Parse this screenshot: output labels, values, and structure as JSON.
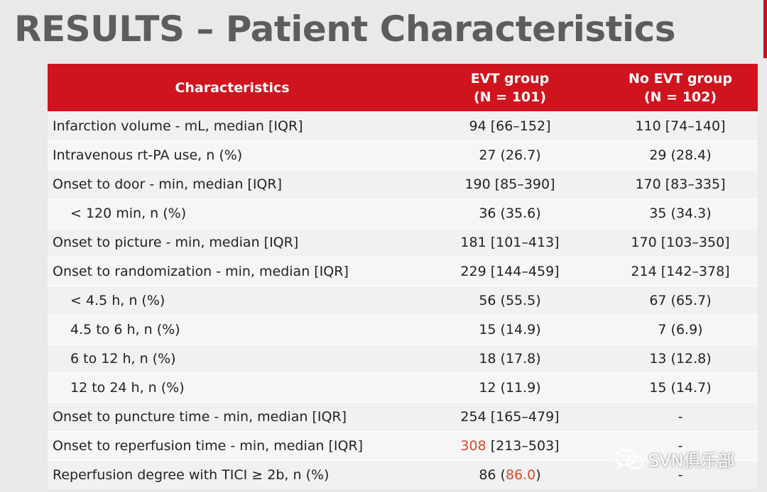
{
  "title": "RESULTS – Patient Characteristics",
  "colors": {
    "header_bg": "#d0141e",
    "title": "#5d5d5d",
    "highlight": "#d94a2c"
  },
  "table": {
    "headers": {
      "characteristics": "Characteristics",
      "evt_line1": "EVT group",
      "evt_line2": "(N = 101)",
      "noevt_line1": "No EVT group",
      "noevt_line2": "(N = 102)"
    },
    "rows": [
      {
        "label": "Infarction volume - mL, median [IQR]",
        "evt": "94 [66–152]",
        "noevt": "110 [74–140]"
      },
      {
        "label": "Intravenous rt-PA use, n (%)",
        "evt": "27 (26.7)",
        "noevt": "29 (28.4)"
      },
      {
        "label": "Onset to door - min, median [IQR]",
        "evt": "190 [85–390]",
        "noevt": "170 [83–335]"
      },
      {
        "label": "< 120 min, n (%)",
        "evt": "36 (35.6)",
        "noevt": "35 (34.3)"
      },
      {
        "label": "Onset to picture - min, median [IQR]",
        "evt": "181 [101–413]",
        "noevt": "170 [103–350]"
      },
      {
        "label": "Onset to randomization - min, median [IQR]",
        "evt": "229 [144–459]",
        "noevt": "214 [142–378]"
      },
      {
        "label": "< 4.5 h, n (%)",
        "evt": "56 (55.5)",
        "noevt": "67 (65.7)"
      },
      {
        "label": "4.5 to 6 h, n (%)",
        "evt": "15 (14.9)",
        "noevt": "7 (6.9)"
      },
      {
        "label": "6 to 12 h, n (%)",
        "evt": "18 (17.8)",
        "noevt": "13 (12.8)"
      },
      {
        "label": "12 to 24 h, n (%)",
        "evt": "12 (11.9)",
        "noevt": "15 (14.7)"
      },
      {
        "label": "Onset to puncture time - min, median [IQR]",
        "evt": "254 [165–479]",
        "noevt": "-"
      },
      {
        "label": "Onset to reperfusion time - min, median [IQR]",
        "evt_hl": "308",
        "evt_rest": " [213–503]",
        "noevt": "-"
      },
      {
        "label": "Reperfusion degree with TICI ≥ 2b, n (%)",
        "evt_pre": "86 (",
        "evt_hl": "86.0",
        "evt_post": ")",
        "noevt": "-"
      }
    ]
  },
  "watermark": {
    "text": "SVN俱乐部",
    "icon": "wechat-icon"
  }
}
